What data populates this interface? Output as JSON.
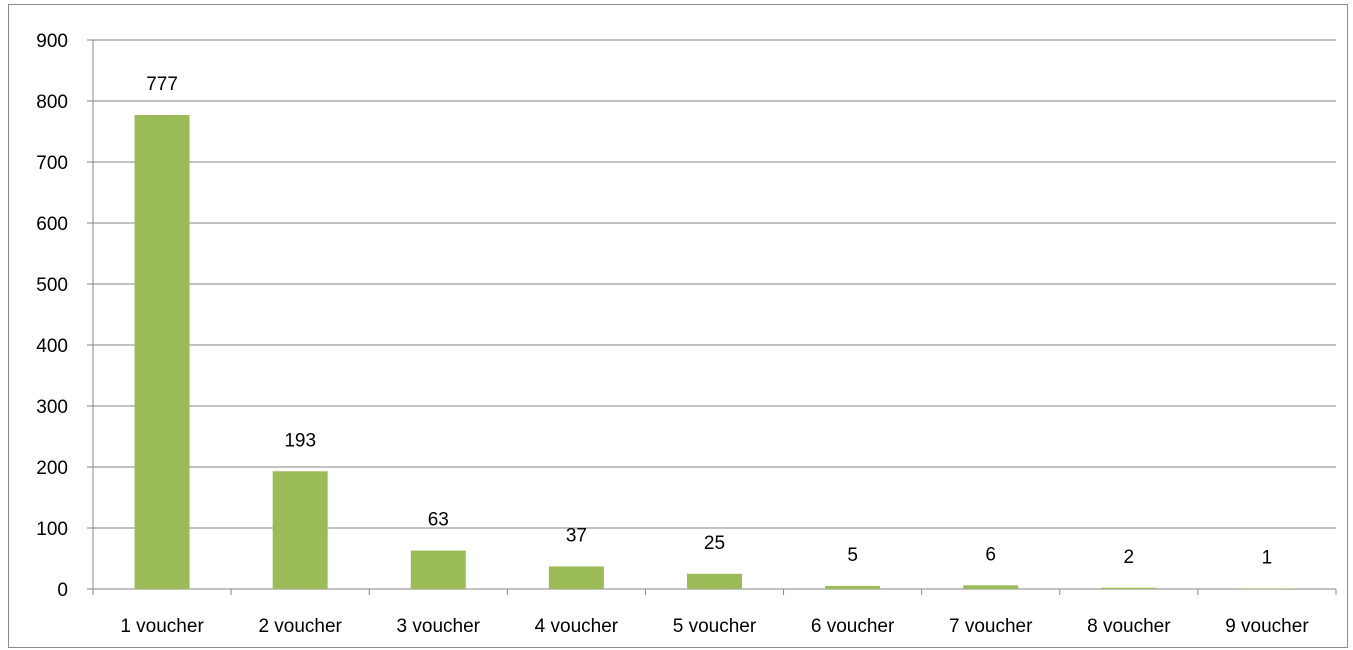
{
  "chart_data": {
    "type": "bar",
    "categories": [
      "1 voucher",
      "2 voucher",
      "3 voucher",
      "4 voucher",
      "5 voucher",
      "6 voucher",
      "7 voucher",
      "8 voucher",
      "9 voucher"
    ],
    "values": [
      777,
      193,
      63,
      37,
      25,
      5,
      6,
      2,
      1
    ],
    "data_labels": [
      "777",
      "193",
      "63",
      "37",
      "25",
      "5",
      "6",
      "2",
      "1"
    ],
    "yticks": [
      "0",
      "100",
      "200",
      "300",
      "400",
      "500",
      "600",
      "700",
      "800",
      "900"
    ],
    "ylim": [
      0,
      900
    ],
    "grid": true,
    "legend": "none",
    "colors": {
      "bar": "#9bbb59",
      "grid": "#868686",
      "text": "#000000"
    }
  }
}
